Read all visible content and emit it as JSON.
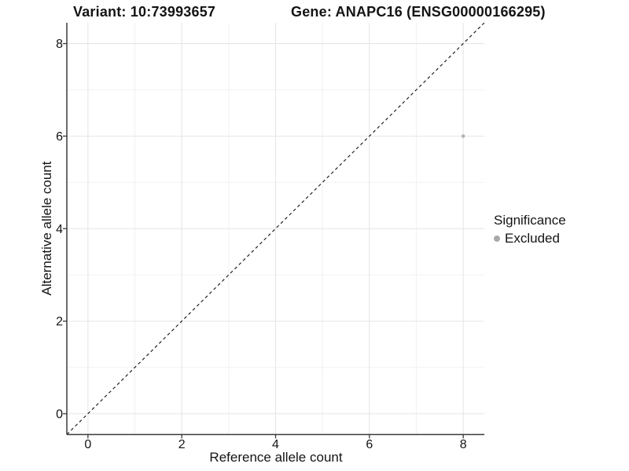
{
  "titles": {
    "variant": "Variant: 10:73993657",
    "gene": "Gene: ANAPC16 (ENSG00000166295)"
  },
  "chart_data": {
    "type": "scatter",
    "xlabel": "Reference allele count",
    "ylabel": "Alternative allele count",
    "xlim": [
      -0.45,
      8.45
    ],
    "ylim": [
      -0.45,
      8.45
    ],
    "x_ticks": [
      0,
      2,
      4,
      6,
      8
    ],
    "y_ticks": [
      0,
      2,
      4,
      6,
      8
    ],
    "x_minor_ticks": [
      1,
      3,
      5,
      7
    ],
    "y_minor_ticks": [
      1,
      3,
      5,
      7
    ],
    "grid": true,
    "reference_line": {
      "equation": "y = x",
      "style": "dashed",
      "color": "#111111"
    },
    "points": [
      {
        "x": 8,
        "y": 6,
        "series": "Excluded",
        "color": "#b4b4b4",
        "radius": 2.3
      }
    ],
    "legend": {
      "title": "Significance",
      "position": "right",
      "items": [
        {
          "label": "Excluded",
          "color": "#a9a9a9",
          "marker": "dot"
        }
      ]
    },
    "colors": {
      "grid_major": "#e6e6e6",
      "grid_minor": "#f2f2f2",
      "axis_line": "#3a3a3a",
      "tick_text": "#141414"
    }
  }
}
